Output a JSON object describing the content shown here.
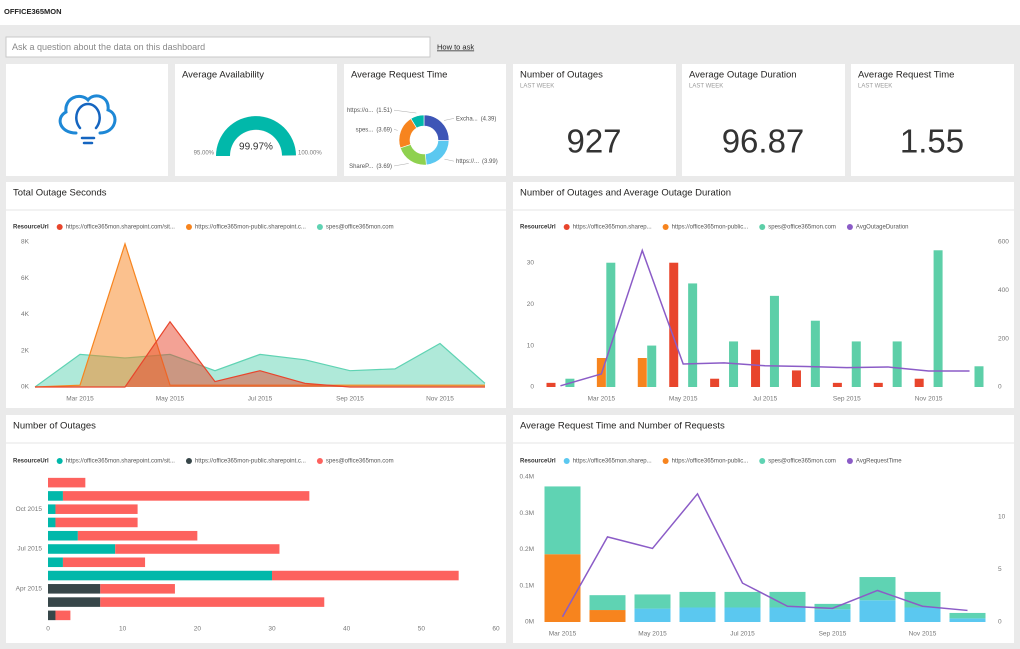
{
  "header": {
    "title": "OFFICE365MON"
  },
  "qa": {
    "placeholder": "Ask a question about the data on this dashboard",
    "link": "How to ask"
  },
  "cards": [
    {
      "title": "Number of Outages",
      "subtitle": "LAST WEEK",
      "value": 927
    },
    {
      "title": "Average Outage Duration",
      "subtitle": "LAST WEEK",
      "value": 96.87
    },
    {
      "title": "Average Request Time",
      "subtitle": "LAST WEEK",
      "value": 1.55
    }
  ],
  "chart_data": [
    {
      "type": "gauge",
      "title": "Average Availability",
      "value": 99.97,
      "value_label": "99.97%",
      "min": {
        "value": 95,
        "label": "95.00%"
      },
      "max": {
        "value": 100,
        "label": "100.00%"
      },
      "color": "#01b8aa"
    },
    {
      "type": "donut",
      "title": "Average Request Time",
      "categories": [
        "Excha...",
        "https://...",
        "ShareP...",
        "spes...",
        "https://o..."
      ],
      "values": [
        4.39,
        3.99,
        3.69,
        3.69,
        1.51
      ],
      "value_labels": [
        "(4.39)",
        "(3.99)",
        "(3.69)",
        "(3.69)",
        "(1.51)"
      ],
      "colors": [
        "#3d55b6",
        "#5bc8f0",
        "#8fd14f",
        "#f7841e",
        "#01b8aa"
      ]
    },
    {
      "type": "area",
      "title": "Total Outage Seconds",
      "legend_title": "ResourceUrl",
      "categories": [
        null,
        "Mar 2015",
        null,
        "May 2015",
        null,
        "Jul 2015",
        null,
        "Sep 2015",
        null,
        "Nov 2015",
        null
      ],
      "series": [
        {
          "name": "https://office365mon.sharepoint.com/sit...",
          "color": "#e8452c",
          "values": [
            0,
            0,
            0,
            3600,
            300,
            900,
            200,
            0,
            0,
            0,
            0
          ]
        },
        {
          "name": "https://office365mon-public.sharepoint.c...",
          "color": "#f7841e",
          "values": [
            0,
            100,
            7900,
            100,
            100,
            100,
            100,
            100,
            100,
            100,
            100
          ]
        },
        {
          "name": "spes@office365mon.com",
          "color": "#5fd3b3",
          "values": [
            0,
            1800,
            1600,
            1800,
            900,
            1800,
            1500,
            900,
            1000,
            2400,
            200
          ]
        }
      ],
      "ylim": [
        0,
        8000
      ],
      "yticks": [
        {
          "value": 0,
          "label": "0K"
        },
        {
          "value": 2000,
          "label": "2K"
        },
        {
          "value": 4000,
          "label": "4K"
        },
        {
          "value": 6000,
          "label": "6K"
        },
        {
          "value": 8000,
          "label": "8K"
        }
      ]
    },
    {
      "type": "combo",
      "title": "Number of Outages and Average Outage Duration",
      "legend_title": "ResourceUrl",
      "stacked": false,
      "categories": [
        null,
        "Mar 2015",
        null,
        "May 2015",
        null,
        "Jul 2015",
        null,
        "Sep 2015",
        null,
        "Nov 2015",
        null
      ],
      "series": [
        {
          "name": "https://office365mon.sharep...",
          "color": "#e8452c",
          "values": [
            1,
            0,
            0,
            30,
            2,
            9,
            4,
            1,
            1,
            2,
            0
          ]
        },
        {
          "name": "https://office365mon-public...",
          "color": "#f7841e",
          "values": [
            0,
            7,
            7,
            0,
            0,
            0,
            0,
            0,
            0,
            0,
            0
          ]
        },
        {
          "name": "spes@office365mon.com",
          "color": "#5dcfa8",
          "values": [
            2,
            30,
            10,
            25,
            11,
            22,
            16,
            11,
            11,
            33,
            5
          ]
        },
        {
          "name": "AvgOutageDuration",
          "color": "#8b5cc7",
          "axis": "y2",
          "values": [
            5,
            54,
            565,
            95,
            100,
            88,
            85,
            80,
            83,
            66,
            66
          ]
        }
      ],
      "ylim": [
        0,
        35
      ],
      "yticks": [
        0,
        10,
        20,
        30
      ],
      "y2lim": [
        0,
        600
      ],
      "y2ticks": [
        0,
        200,
        400,
        600
      ]
    },
    {
      "type": "barh",
      "title": "Number of Outages",
      "legend_title": "ResourceUrl",
      "categories": [
        null,
        null,
        "Apr 2015",
        null,
        null,
        "Jul 2015",
        null,
        null,
        "Oct 2015",
        null,
        null
      ],
      "series": [
        {
          "name": "https://office365mon.sharepoint.com/sit...",
          "color": "#01b8aa",
          "values": [
            0,
            0,
            0,
            30,
            2,
            9,
            4,
            1,
            1,
            2,
            0
          ]
        },
        {
          "name": "https://office365mon-public.sharepoint.c...",
          "color": "#374649",
          "values": [
            1,
            7,
            7,
            0,
            0,
            0,
            0,
            0,
            0,
            0,
            0
          ]
        },
        {
          "name": "spes@office365mon.com",
          "color": "#fd625e",
          "values": [
            2,
            30,
            10,
            25,
            11,
            22,
            16,
            11,
            11,
            33,
            5
          ]
        }
      ],
      "xlim": [
        0,
        60
      ],
      "xticks": [
        0,
        10,
        20,
        30,
        40,
        50,
        60
      ]
    },
    {
      "type": "combo",
      "title": "Average Request Time and Number of Requests",
      "legend_title": "ResourceUrl",
      "stacked": true,
      "categories": [
        "Mar 2015",
        null,
        "May 2015",
        null,
        "Jul 2015",
        null,
        "Sep 2015",
        null,
        "Nov 2015",
        null
      ],
      "series": [
        {
          "name": "https://office365mon.sharep...",
          "color": "#5bc8f0",
          "values": [
            0,
            0,
            37000,
            40000,
            40000,
            40000,
            35000,
            60000,
            40000,
            10000
          ]
        },
        {
          "name": "https://office365mon-public...",
          "color": "#f7841e",
          "values": [
            187000,
            33000,
            0,
            0,
            0,
            0,
            0,
            0,
            0,
            0
          ]
        },
        {
          "name": "spes@office365mon.com",
          "color": "#5fd3b3",
          "values": [
            187000,
            41000,
            39000,
            43000,
            43000,
            43000,
            15000,
            64000,
            43000,
            15000
          ]
        },
        {
          "name": "AvgRequestTime",
          "color": "#8b5cc7",
          "axis": "y2",
          "values": [
            0.5,
            8.1,
            7.0,
            12.2,
            3.7,
            1.5,
            1.3,
            3.0,
            1.5,
            1.1
          ]
        }
      ],
      "ylim": [
        0,
        400000
      ],
      "yticks": [
        {
          "value": 0,
          "label": "0M"
        },
        {
          "value": 100000,
          "label": "0.1M"
        },
        {
          "value": 200000,
          "label": "0.2M"
        },
        {
          "value": 300000,
          "label": "0.3M"
        },
        {
          "value": 400000,
          "label": "0.4M"
        }
      ],
      "y2lim": [
        0,
        13.8
      ],
      "y2ticks": [
        0,
        5,
        10
      ]
    }
  ]
}
